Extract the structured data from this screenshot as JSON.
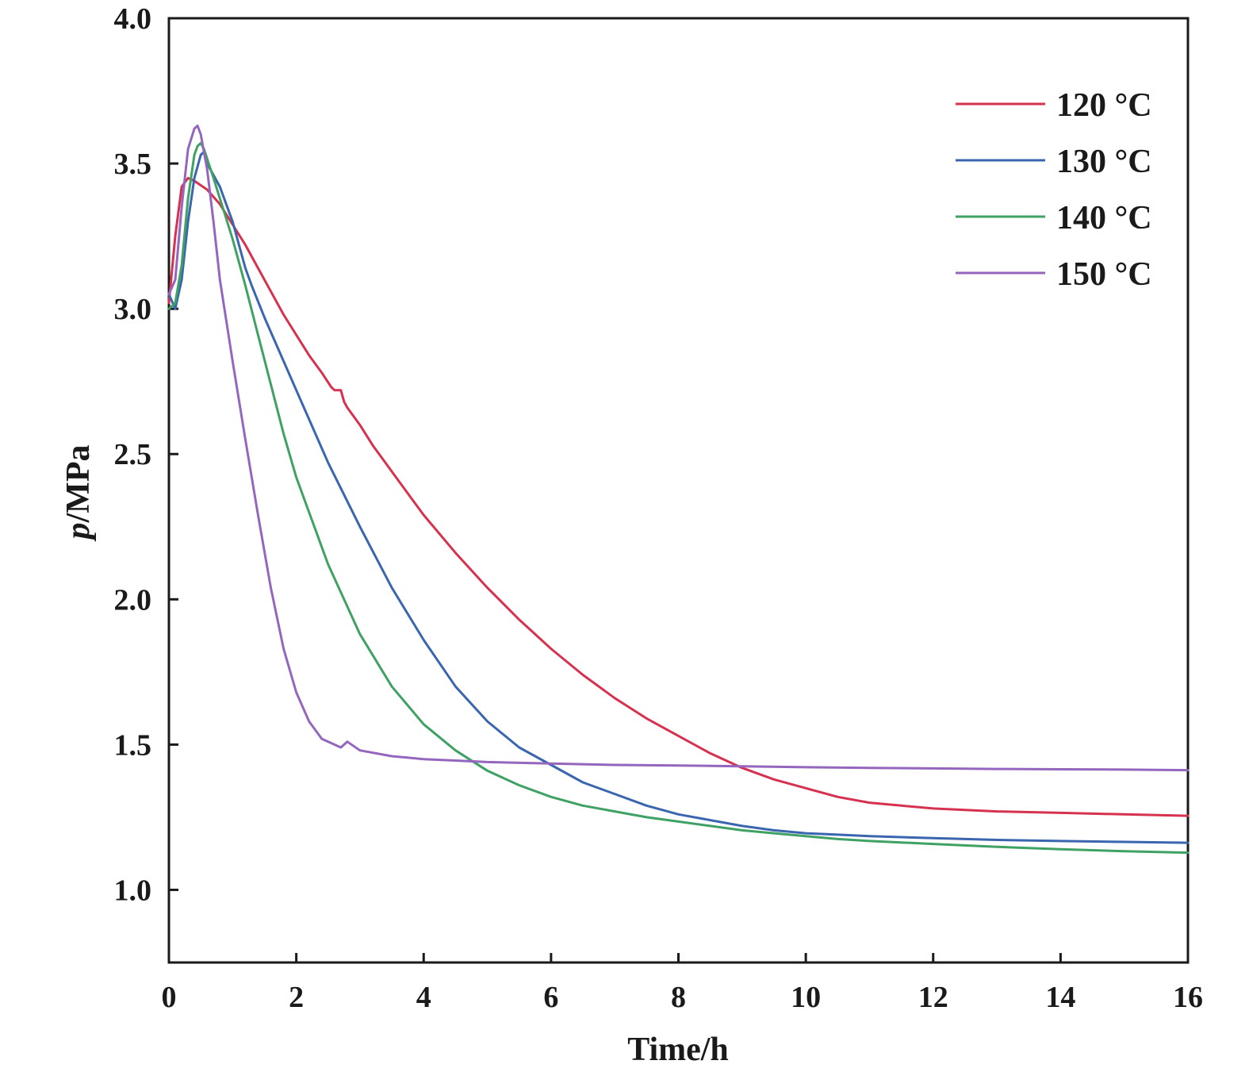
{
  "chart_data": {
    "type": "line",
    "xlabel": "Time/h",
    "ylabel_italic": "p",
    "ylabel_rest": "/MPa",
    "xlim": [
      0,
      16
    ],
    "ylim": [
      0.75,
      4.0
    ],
    "xticks": [
      0,
      2,
      4,
      6,
      8,
      10,
      12,
      14,
      16
    ],
    "xtick_labels": [
      "0",
      "2",
      "4",
      "6",
      "8",
      "10",
      "12",
      "14",
      "16"
    ],
    "yticks": [
      1.0,
      1.5,
      2.0,
      2.5,
      3.0,
      3.5,
      4.0
    ],
    "ytick_labels": [
      "1.0",
      "1.5",
      "2.0",
      "2.5",
      "3.0",
      "3.5",
      "4.0"
    ],
    "grid": false,
    "legend_position": "top-right",
    "series": [
      {
        "name": "120 °C",
        "color": "#d6324f",
        "points": [
          [
            0,
            3.02
          ],
          [
            0.1,
            3.25
          ],
          [
            0.2,
            3.42
          ],
          [
            0.3,
            3.45
          ],
          [
            0.4,
            3.44
          ],
          [
            0.6,
            3.41
          ],
          [
            0.8,
            3.36
          ],
          [
            1.0,
            3.29
          ],
          [
            1.2,
            3.22
          ],
          [
            1.4,
            3.14
          ],
          [
            1.6,
            3.06
          ],
          [
            1.8,
            2.98
          ],
          [
            2.0,
            2.91
          ],
          [
            2.2,
            2.84
          ],
          [
            2.4,
            2.78
          ],
          [
            2.55,
            2.73
          ],
          [
            2.6,
            2.72
          ],
          [
            2.7,
            2.72
          ],
          [
            2.75,
            2.68
          ],
          [
            2.8,
            2.66
          ],
          [
            3.0,
            2.6
          ],
          [
            3.2,
            2.53
          ],
          [
            3.4,
            2.47
          ],
          [
            3.6,
            2.41
          ],
          [
            3.8,
            2.35
          ],
          [
            4.0,
            2.29
          ],
          [
            4.5,
            2.16
          ],
          [
            5.0,
            2.04
          ],
          [
            5.5,
            1.93
          ],
          [
            6.0,
            1.83
          ],
          [
            6.5,
            1.74
          ],
          [
            7.0,
            1.66
          ],
          [
            7.5,
            1.59
          ],
          [
            8.0,
            1.53
          ],
          [
            8.5,
            1.47
          ],
          [
            9.0,
            1.42
          ],
          [
            9.5,
            1.38
          ],
          [
            10.0,
            1.35
          ],
          [
            10.5,
            1.32
          ],
          [
            11.0,
            1.3
          ],
          [
            11.5,
            1.29
          ],
          [
            12.0,
            1.28
          ],
          [
            13.0,
            1.27
          ],
          [
            14.0,
            1.265
          ],
          [
            15.0,
            1.26
          ],
          [
            16.0,
            1.255
          ]
        ]
      },
      {
        "name": "130 °C",
        "color": "#3a66b0",
        "points": [
          [
            0,
            3.05
          ],
          [
            0.1,
            3.0
          ],
          [
            0.2,
            3.1
          ],
          [
            0.3,
            3.3
          ],
          [
            0.4,
            3.45
          ],
          [
            0.5,
            3.53
          ],
          [
            0.55,
            3.54
          ],
          [
            0.6,
            3.5
          ],
          [
            0.8,
            3.42
          ],
          [
            1.0,
            3.3
          ],
          [
            1.2,
            3.14
          ],
          [
            1.3,
            3.08
          ],
          [
            1.5,
            2.97
          ],
          [
            1.8,
            2.82
          ],
          [
            2.0,
            2.72
          ],
          [
            2.5,
            2.47
          ],
          [
            3.0,
            2.25
          ],
          [
            3.5,
            2.04
          ],
          [
            4.0,
            1.86
          ],
          [
            4.5,
            1.7
          ],
          [
            5.0,
            1.58
          ],
          [
            5.5,
            1.49
          ],
          [
            6.0,
            1.43
          ],
          [
            6.5,
            1.37
          ],
          [
            7.0,
            1.33
          ],
          [
            7.5,
            1.29
          ],
          [
            8.0,
            1.26
          ],
          [
            8.5,
            1.24
          ],
          [
            9.0,
            1.22
          ],
          [
            9.5,
            1.205
          ],
          [
            10.0,
            1.195
          ],
          [
            10.5,
            1.19
          ],
          [
            11.0,
            1.185
          ],
          [
            12.0,
            1.178
          ],
          [
            13.0,
            1.172
          ],
          [
            14.0,
            1.168
          ],
          [
            15.0,
            1.165
          ],
          [
            16.0,
            1.162
          ]
        ]
      },
      {
        "name": "140 °C",
        "color": "#3fa163",
        "points": [
          [
            0,
            3.0
          ],
          [
            0.1,
            3.02
          ],
          [
            0.2,
            3.15
          ],
          [
            0.3,
            3.38
          ],
          [
            0.4,
            3.53
          ],
          [
            0.45,
            3.56
          ],
          [
            0.5,
            3.57
          ],
          [
            0.55,
            3.55
          ],
          [
            0.7,
            3.45
          ],
          [
            0.9,
            3.31
          ],
          [
            1.0,
            3.24
          ],
          [
            1.2,
            3.08
          ],
          [
            1.4,
            2.91
          ],
          [
            1.6,
            2.74
          ],
          [
            1.8,
            2.57
          ],
          [
            2.0,
            2.42
          ],
          [
            2.5,
            2.12
          ],
          [
            3.0,
            1.88
          ],
          [
            3.5,
            1.7
          ],
          [
            4.0,
            1.57
          ],
          [
            4.5,
            1.48
          ],
          [
            5.0,
            1.41
          ],
          [
            5.5,
            1.36
          ],
          [
            6.0,
            1.32
          ],
          [
            6.5,
            1.29
          ],
          [
            7.0,
            1.27
          ],
          [
            7.5,
            1.25
          ],
          [
            8.0,
            1.235
          ],
          [
            8.5,
            1.22
          ],
          [
            9.0,
            1.205
          ],
          [
            9.5,
            1.195
          ],
          [
            10.0,
            1.185
          ],
          [
            10.5,
            1.175
          ],
          [
            11.0,
            1.168
          ],
          [
            12.0,
            1.158
          ],
          [
            13.0,
            1.148
          ],
          [
            14.0,
            1.14
          ],
          [
            15.0,
            1.133
          ],
          [
            16.0,
            1.128
          ]
        ]
      },
      {
        "name": "150 °C",
        "color": "#9466bd",
        "points": [
          [
            0,
            3.05
          ],
          [
            0.1,
            3.1
          ],
          [
            0.2,
            3.35
          ],
          [
            0.3,
            3.55
          ],
          [
            0.4,
            3.62
          ],
          [
            0.45,
            3.63
          ],
          [
            0.5,
            3.6
          ],
          [
            0.6,
            3.48
          ],
          [
            0.7,
            3.3
          ],
          [
            0.8,
            3.1
          ],
          [
            1.0,
            2.82
          ],
          [
            1.2,
            2.55
          ],
          [
            1.4,
            2.29
          ],
          [
            1.6,
            2.04
          ],
          [
            1.8,
            1.83
          ],
          [
            2.0,
            1.68
          ],
          [
            2.2,
            1.58
          ],
          [
            2.4,
            1.52
          ],
          [
            2.6,
            1.5
          ],
          [
            2.7,
            1.49
          ],
          [
            2.8,
            1.51
          ],
          [
            3.0,
            1.48
          ],
          [
            3.5,
            1.46
          ],
          [
            4.0,
            1.45
          ],
          [
            4.5,
            1.445
          ],
          [
            5.0,
            1.44
          ],
          [
            6.0,
            1.435
          ],
          [
            7.0,
            1.43
          ],
          [
            8.0,
            1.428
          ],
          [
            9.0,
            1.425
          ],
          [
            10.0,
            1.422
          ],
          [
            11.0,
            1.42
          ],
          [
            12.0,
            1.418
          ],
          [
            13.0,
            1.416
          ],
          [
            14.0,
            1.415
          ],
          [
            15.0,
            1.414
          ],
          [
            16.0,
            1.412
          ]
        ]
      }
    ]
  }
}
